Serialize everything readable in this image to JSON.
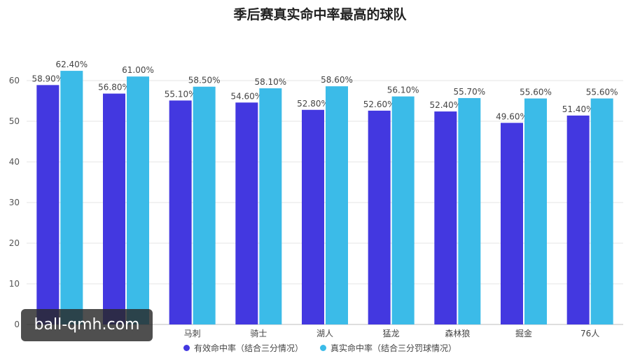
{
  "chart_data": {
    "type": "bar",
    "title": "季后赛真实命中率最高的球队",
    "categories": [
      "",
      "",
      "马刺",
      "骑士",
      "湖人",
      "猛龙",
      "森林狼",
      "掘金",
      "76人"
    ],
    "series": [
      {
        "name": "有效命中率（结合三分情况）",
        "color": "#4338e0",
        "values": [
          58.9,
          56.8,
          55.1,
          54.6,
          52.8,
          52.6,
          52.4,
          49.6,
          51.4
        ],
        "labels": [
          "58.90%",
          "56.80%",
          "55.10%",
          "54.60%",
          "52.80%",
          "52.60%",
          "52.40%",
          "49.60%",
          "51.40%"
        ]
      },
      {
        "name": "真实命中率（结合三分罚球情况）",
        "color": "#3bbbe8",
        "values": [
          62.4,
          61.0,
          58.5,
          58.1,
          58.6,
          56.1,
          55.7,
          55.6,
          55.6
        ],
        "labels": [
          "62.40%",
          "61.00%",
          "58.50%",
          "58.10%",
          "58.60%",
          "56.10%",
          "55.70%",
          "55.60%",
          "55.60%"
        ]
      }
    ],
    "ylim": [
      0,
      60
    ],
    "yticks": [
      0,
      10,
      20,
      30,
      40,
      50,
      60
    ],
    "grid": true,
    "legend_position": "bottom"
  },
  "watermark": "ball-qmh.com"
}
